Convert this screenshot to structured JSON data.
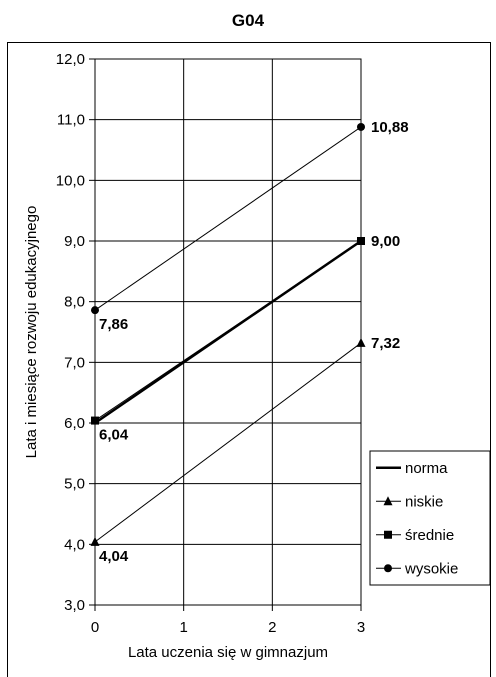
{
  "chart_data": {
    "type": "line",
    "title": "G04",
    "xlabel": "Lata uczenia się w gimnazjum",
    "ylabel": "Lata i miesiące rozwoju edukacyjnego",
    "x": [
      0,
      3
    ],
    "xlim": [
      0,
      3
    ],
    "ylim": [
      3,
      12
    ],
    "xticks": [
      0,
      1,
      2,
      3
    ],
    "yticks": [
      3,
      4,
      5,
      6,
      7,
      8,
      9,
      10,
      11,
      12
    ],
    "xtick_labels": [
      "0",
      "1",
      "2",
      "3"
    ],
    "ytick_labels": [
      "3,0",
      "4,0",
      "5,0",
      "6,0",
      "7,0",
      "8,0",
      "9,0",
      "10,0",
      "11,0",
      "12,0"
    ],
    "grid": true,
    "legend_position": "right",
    "series": [
      {
        "name": "norma",
        "values": [
          6,
          9
        ],
        "marker": "none",
        "width": 2.5
      },
      {
        "name": "niskie",
        "values": [
          4.04,
          7.32
        ],
        "marker": "triangle",
        "width": 1
      },
      {
        "name": "średnie",
        "values": [
          6.04,
          9.0
        ],
        "marker": "square",
        "width": 1
      },
      {
        "name": "wysokie",
        "values": [
          7.86,
          10.88
        ],
        "marker": "circle",
        "width": 1
      }
    ],
    "data_labels": [
      {
        "x": 0,
        "y": 4.04,
        "text": "4,04"
      },
      {
        "x": 0,
        "y": 6.04,
        "text": "6,04"
      },
      {
        "x": 0,
        "y": 7.86,
        "text": "7,86"
      },
      {
        "x": 3,
        "y": 7.32,
        "text": "7,32"
      },
      {
        "x": 3,
        "y": 9.0,
        "text": "9,00"
      },
      {
        "x": 3,
        "y": 10.88,
        "text": "10,88"
      }
    ]
  }
}
